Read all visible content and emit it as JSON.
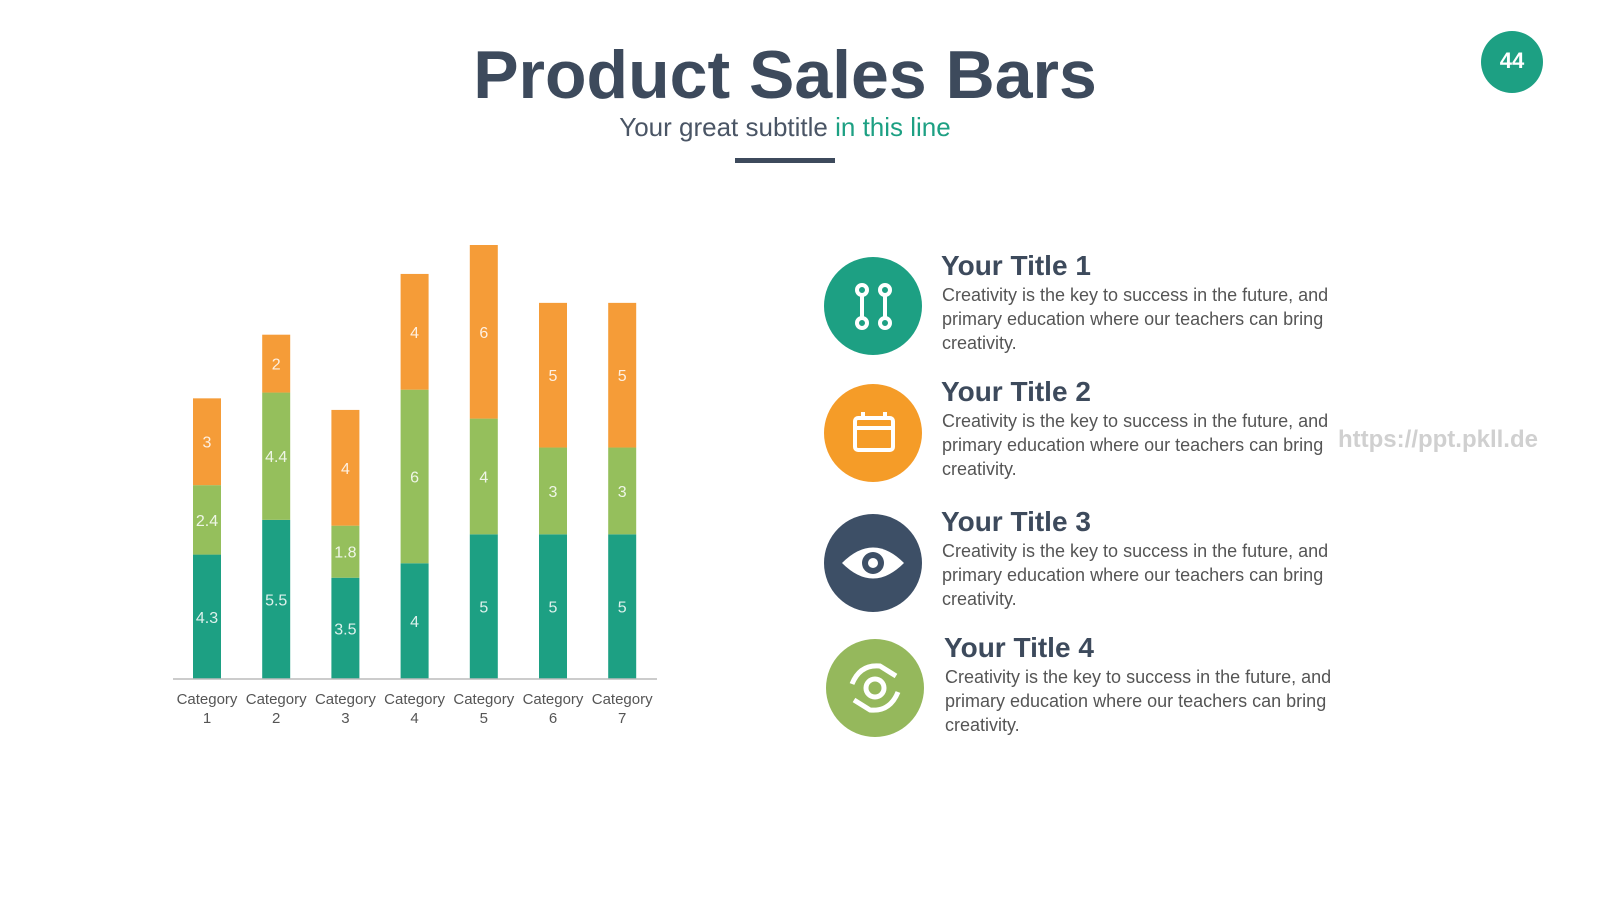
{
  "slide": {
    "title": "Product Sales Bars",
    "subtitle": "Your great subtitle",
    "subtitle_highlight": "in this line",
    "page_number": "44",
    "watermark": "https://ppt.pkll.de",
    "items": [
      {
        "title": "Your Title 1",
        "text": "Creativity is the key to success in the future, and primary education where our teachers can bring creativity."
      },
      {
        "title": "Your Title 2",
        "text": "Creativity is the key to success in the future, and primary education where our teachers can bring creativity."
      },
      {
        "title": "Your Title 3",
        "text": "Creativity is the key to success in the future, and primary education where our teachers can bring creativity."
      },
      {
        "title": "Your Title 4",
        "text": "Creativity is the key to success in the future, and primary education where our teachers can bring creativity."
      }
    ]
  },
  "chart_data": {
    "type": "stacked_bar",
    "categories": [
      "Category 1",
      "Category 2",
      "Category 3",
      "Category 4",
      "Category 5",
      "Category 6",
      "Category 7"
    ],
    "series": [
      {
        "color": "#1da083",
        "values": [
          4.3,
          5.5,
          3.5,
          4,
          5,
          5,
          5
        ]
      },
      {
        "color": "#95bf5c",
        "values": [
          2.4,
          4.4,
          1.8,
          6,
          4,
          3,
          3
        ]
      },
      {
        "color": "#f59c38",
        "values": [
          3,
          2,
          4,
          4,
          6,
          5,
          5
        ]
      }
    ]
  }
}
